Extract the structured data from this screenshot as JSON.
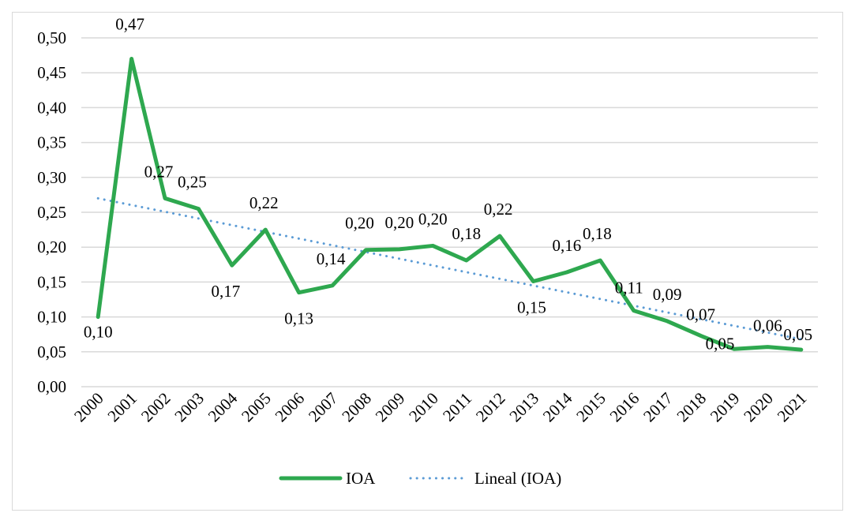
{
  "chart_data": {
    "type": "line",
    "title": "",
    "xlabel": "",
    "ylabel": "",
    "ylim": [
      0,
      0.5
    ],
    "yticks": [
      "0,00",
      "0,05",
      "0,10",
      "0,15",
      "0,20",
      "0,25",
      "0,30",
      "0,35",
      "0,40",
      "0,45",
      "0,50"
    ],
    "ytick_values": [
      0,
      0.05,
      0.1,
      0.15,
      0.2,
      0.25,
      0.3,
      0.35,
      0.4,
      0.45,
      0.5
    ],
    "grid": true,
    "categories": [
      "2000",
      "2001",
      "2002",
      "2003",
      "2004",
      "2005",
      "2006",
      "2007",
      "2008",
      "2009",
      "2010",
      "2011",
      "2012",
      "2013",
      "2014",
      "2015",
      "2016",
      "2017",
      "2018",
      "2019",
      "2020",
      "2021"
    ],
    "series": [
      {
        "name": "IOA",
        "color": "#2ea84f",
        "style": "solid",
        "values": [
          0.1,
          0.47,
          0.27,
          0.255,
          0.174,
          0.225,
          0.135,
          0.145,
          0.196,
          0.197,
          0.202,
          0.181,
          0.216,
          0.151,
          0.164,
          0.181,
          0.109,
          0.094,
          0.073,
          0.054,
          0.057,
          0.053
        ],
        "labels": [
          "0,10",
          "0,47",
          "0,27",
          "0,25",
          "0,17",
          "0,22",
          "0,13",
          "0,14",
          "0,20",
          "0,20",
          "0,20",
          "0,18",
          "0,22",
          "0,15",
          "0,16",
          "0,18",
          "0,11",
          "0,09",
          "0,07",
          "0,05",
          "0,06",
          "0,05"
        ]
      },
      {
        "name": "Lineal (IOA)",
        "color": "#5b9bd5",
        "style": "dotted",
        "trendline": true,
        "start_value": 0.27,
        "end_value": 0.068
      }
    ],
    "legend": {
      "position": "bottom",
      "items": [
        "IOA",
        "Lineal (IOA)"
      ]
    }
  }
}
